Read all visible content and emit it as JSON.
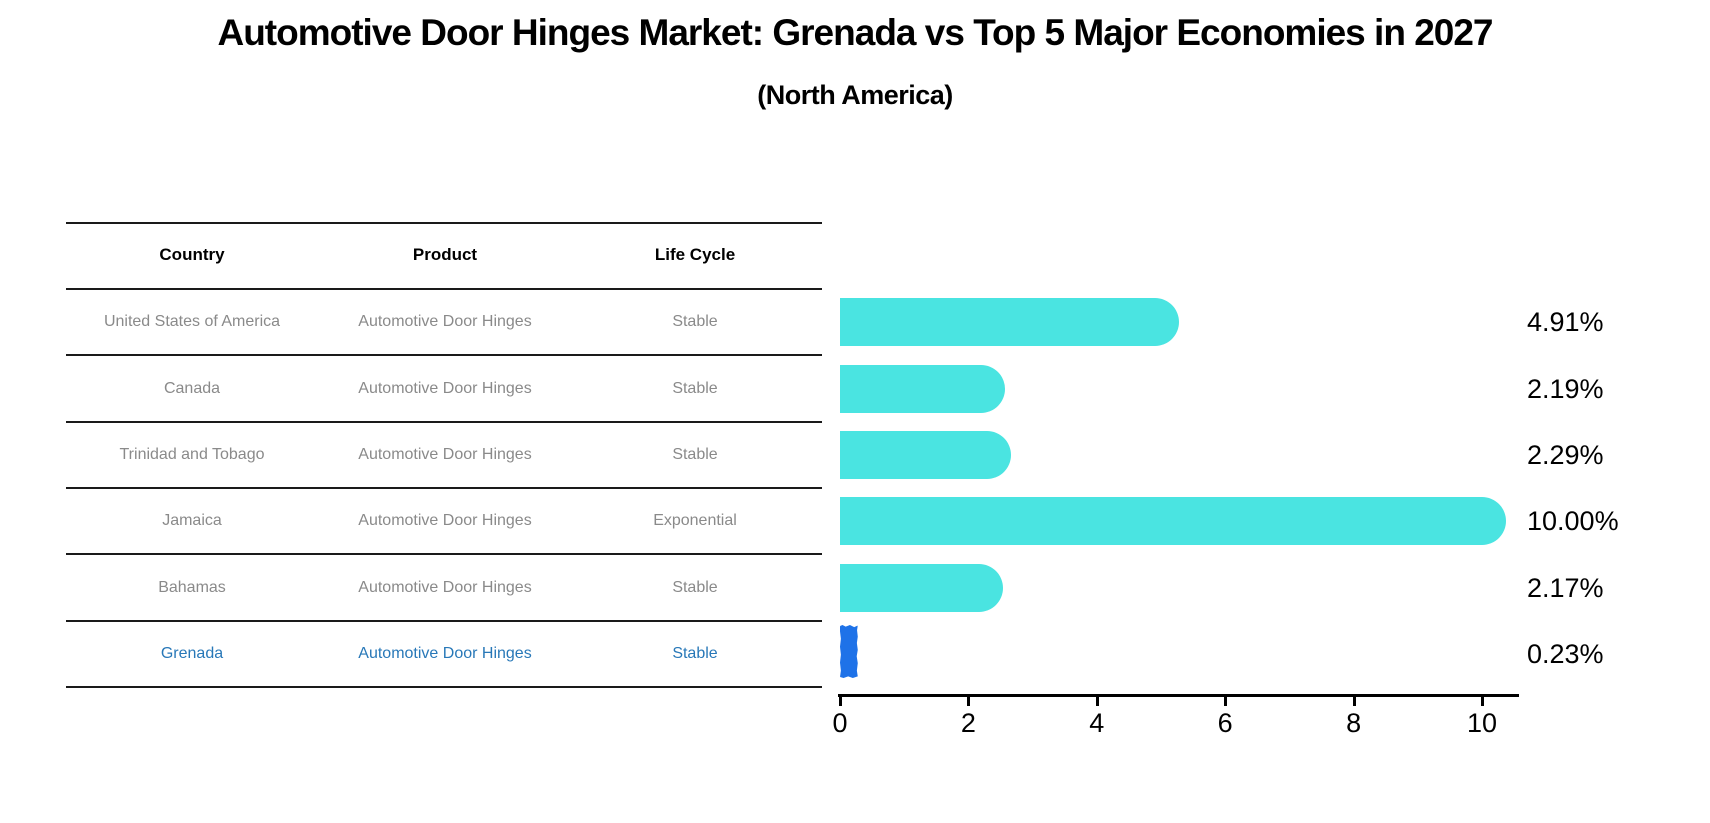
{
  "title": "Automotive Door Hinges Market: Grenada vs Top 5 Major Economies in 2027",
  "subtitle": "(North America)",
  "table": {
    "headers": [
      "Country",
      "Product",
      "Life Cycle"
    ],
    "rows": [
      {
        "country": "United States of America",
        "product": "Automotive Door Hinges",
        "life_cycle": "Stable"
      },
      {
        "country": "Canada",
        "product": "Automotive Door Hinges",
        "life_cycle": "Stable"
      },
      {
        "country": "Trinidad and Tobago",
        "product": "Automotive Door Hinges",
        "life_cycle": "Stable"
      },
      {
        "country": "Jamaica",
        "product": "Automotive Door Hinges",
        "life_cycle": "Exponential"
      },
      {
        "country": "Bahamas",
        "product": "Automotive Door Hinges",
        "life_cycle": "Stable"
      },
      {
        "country": "Grenada",
        "product": "Automotive Door Hinges",
        "life_cycle": "Stable"
      }
    ],
    "highlight_row_index": 5
  },
  "chart_data": {
    "type": "bar",
    "orientation": "horizontal",
    "title": "Automotive Door Hinges Market: Grenada vs Top 5 Major Economies in 2027 (North America)",
    "categories": [
      "United States of America",
      "Canada",
      "Trinidad and Tobago",
      "Jamaica",
      "Bahamas",
      "Grenada"
    ],
    "values": [
      4.91,
      2.19,
      2.29,
      10.0,
      2.17,
      0.23
    ],
    "value_labels": [
      "4.91%",
      "2.19%",
      "2.29%",
      "10.00%",
      "2.17%",
      "0.23%"
    ],
    "xlabel": "",
    "ylabel": "",
    "xlim": [
      0,
      10.5
    ],
    "x_ticks": [
      0,
      2,
      4,
      6,
      8,
      10
    ],
    "grid": false,
    "legend": false,
    "bar_color": "#4ae4e1",
    "highlight_bar_color": "#1e72e8",
    "highlight_index": 5
  },
  "colors": {
    "bar_cyan": "#4ae4e1",
    "bar_blue": "#1e72e8",
    "highlight_text": "#2878b8",
    "row_text": "#8a8a8a",
    "line": "#1a1a1a",
    "background": "#ffffff"
  }
}
